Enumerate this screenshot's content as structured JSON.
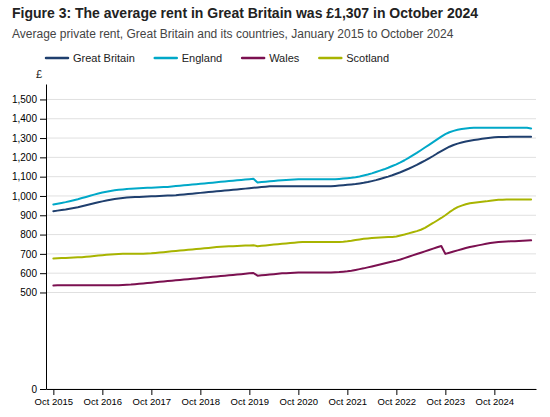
{
  "chart_data": {
    "type": "line",
    "title": "Figure 3: The average rent in Great Britain was £1,307 in October 2024",
    "subtitle": "Average private rent, Great Britain and its countries, January 2015 to October 2024",
    "ylabel": "£",
    "x": [
      2015.0,
      2015.083,
      2015.167,
      2015.25,
      2015.333,
      2015.417,
      2015.5,
      2015.583,
      2015.667,
      2015.75,
      2015.833,
      2015.917,
      2016.0,
      2016.083,
      2016.167,
      2016.25,
      2016.333,
      2016.417,
      2016.5,
      2016.583,
      2016.667,
      2016.75,
      2016.833,
      2016.917,
      2017.0,
      2017.083,
      2017.167,
      2017.25,
      2017.333,
      2017.417,
      2017.5,
      2017.583,
      2017.667,
      2017.75,
      2017.833,
      2017.917,
      2018.0,
      2018.083,
      2018.167,
      2018.25,
      2018.333,
      2018.417,
      2018.5,
      2018.583,
      2018.667,
      2018.75,
      2018.833,
      2018.917,
      2019.0,
      2019.083,
      2019.167,
      2019.25,
      2019.333,
      2019.417,
      2019.5,
      2019.583,
      2019.667,
      2019.75,
      2019.833,
      2019.917,
      2020.0,
      2020.083,
      2020.167,
      2020.25,
      2020.333,
      2020.417,
      2020.5,
      2020.583,
      2020.667,
      2020.75,
      2020.833,
      2020.917,
      2021.0,
      2021.083,
      2021.167,
      2021.25,
      2021.333,
      2021.417,
      2021.5,
      2021.583,
      2021.667,
      2021.75,
      2021.833,
      2021.917,
      2022.0,
      2022.083,
      2022.167,
      2022.25,
      2022.333,
      2022.417,
      2022.5,
      2022.583,
      2022.667,
      2022.75,
      2022.833,
      2022.917,
      2023.0,
      2023.083,
      2023.167,
      2023.25,
      2023.333,
      2023.417,
      2023.5,
      2023.583,
      2023.667,
      2023.75,
      2023.833,
      2023.917,
      2024.0,
      2024.083,
      2024.167,
      2024.25,
      2024.333,
      2024.417,
      2024.5,
      2024.583,
      2024.667,
      2024.75
    ],
    "series": [
      {
        "name": "Great Britain",
        "color": "#1f3f6e",
        "values": [
          921,
          924,
          927,
          930,
          934,
          938,
          942,
          947,
          952,
          957,
          962,
          967,
          972,
          976,
          980,
          984,
          987,
          990,
          992,
          993,
          994,
          995,
          996,
          997,
          998,
          999,
          1000,
          1001,
          1002,
          1003,
          1004,
          1006,
          1008,
          1010,
          1012,
          1014,
          1016,
          1018,
          1020,
          1022,
          1024,
          1026,
          1028,
          1030,
          1032,
          1034,
          1036,
          1038,
          1040,
          1042,
          1044,
          1046,
          1048,
          1050,
          1050,
          1050,
          1050,
          1050,
          1050,
          1050,
          1050,
          1050,
          1050,
          1050,
          1050,
          1050,
          1050,
          1050,
          1050,
          1052,
          1054,
          1056,
          1058,
          1060,
          1062,
          1065,
          1068,
          1072,
          1077,
          1082,
          1088,
          1094,
          1100,
          1107,
          1115,
          1123,
          1132,
          1141,
          1151,
          1161,
          1172,
          1183,
          1195,
          1207,
          1220,
          1232,
          1244,
          1255,
          1264,
          1271,
          1277,
          1282,
          1286,
          1290,
          1293,
          1296,
          1299,
          1302,
          1304,
          1305,
          1306,
          1306,
          1307,
          1307,
          1307,
          1307,
          1307,
          1307
        ]
      },
      {
        "name": "England",
        "color": "#00a8c8",
        "values": [
          956,
          960,
          964,
          968,
          973,
          978,
          983,
          989,
          995,
          1001,
          1007,
          1013,
          1018,
          1022,
          1026,
          1029,
          1032,
          1034,
          1036,
          1038,
          1039,
          1040,
          1041,
          1042,
          1043,
          1044,
          1045,
          1046,
          1047,
          1049,
          1051,
          1053,
          1055,
          1057,
          1059,
          1061,
          1063,
          1065,
          1067,
          1069,
          1071,
          1073,
          1075,
          1077,
          1079,
          1081,
          1083,
          1085,
          1087,
          1089,
          1070,
          1072,
          1074,
          1076,
          1078,
          1080,
          1082,
          1083,
          1084,
          1085,
          1086,
          1086,
          1086,
          1086,
          1086,
          1086,
          1086,
          1086,
          1086,
          1086,
          1088,
          1090,
          1092,
          1094,
          1097,
          1101,
          1106,
          1111,
          1117,
          1124,
          1131,
          1138,
          1146,
          1155,
          1164,
          1174,
          1185,
          1197,
          1210,
          1223,
          1237,
          1251,
          1265,
          1279,
          1293,
          1307,
          1320,
          1330,
          1337,
          1343,
          1347,
          1350,
          1352,
          1353,
          1353,
          1353,
          1353,
          1353,
          1353,
          1353,
          1353,
          1353,
          1353,
          1353,
          1353,
          1353,
          1353,
          1350
        ]
      },
      {
        "name": "Wales",
        "color": "#7b1050",
        "values": [
          536,
          537,
          537,
          538,
          538,
          538,
          538,
          538,
          538,
          538,
          538,
          538,
          538,
          538,
          538,
          538,
          538,
          539,
          540,
          541,
          543,
          545,
          547,
          549,
          551,
          553,
          555,
          557,
          559,
          561,
          563,
          565,
          567,
          569,
          571,
          573,
          575,
          577,
          579,
          581,
          583,
          585,
          587,
          589,
          591,
          593,
          595,
          597,
          599,
          601,
          587,
          589,
          591,
          593,
          595,
          597,
          599,
          600,
          601,
          602,
          603,
          604,
          604,
          604,
          604,
          604,
          604,
          604,
          604,
          605,
          606,
          608,
          610,
          613,
          617,
          621,
          625,
          630,
          635,
          640,
          645,
          650,
          655,
          660,
          665,
          671,
          678,
          685,
          692,
          699,
          706,
          713,
          720,
          727,
          734,
          741,
          700,
          706,
          712,
          718,
          724,
          730,
          736,
          740,
          744,
          748,
          752,
          756,
          759,
          761,
          763,
          764,
          765,
          766,
          767,
          768,
          769,
          770
        ]
      },
      {
        "name": "Scotland",
        "color": "#a8b400",
        "values": [
          676,
          677,
          678,
          679,
          680,
          681,
          682,
          683,
          685,
          687,
          689,
          691,
          693,
          695,
          697,
          698,
          699,
          700,
          700,
          700,
          700,
          700,
          701,
          702,
          703,
          705,
          707,
          709,
          711,
          713,
          715,
          717,
          719,
          721,
          723,
          725,
          727,
          729,
          731,
          733,
          735,
          737,
          738,
          739,
          740,
          741,
          742,
          743,
          744,
          745,
          740,
          742,
          744,
          746,
          748,
          750,
          752,
          754,
          756,
          758,
          760,
          761,
          761,
          761,
          761,
          761,
          761,
          761,
          761,
          761,
          762,
          763,
          765,
          768,
          772,
          775,
          778,
          780,
          782,
          784,
          785,
          786,
          787,
          788,
          790,
          795,
          800,
          806,
          812,
          818,
          825,
          835,
          848,
          860,
          873,
          886,
          900,
          916,
          930,
          942,
          950,
          957,
          962,
          965,
          968,
          970,
          972,
          975,
          978,
          980,
          981,
          982,
          982,
          982,
          982,
          982,
          982,
          982
        ]
      }
    ],
    "xlim": [
      2014.85,
      2024.85
    ],
    "xticks": [
      {
        "value": 2015,
        "label": "Oct 2015"
      },
      {
        "value": 2016,
        "label": "Oct 2016"
      },
      {
        "value": 2017,
        "label": "Oct 2017"
      },
      {
        "value": 2018,
        "label": "Oct 2018"
      },
      {
        "value": 2019,
        "label": "Oct 2019"
      },
      {
        "value": 2020,
        "label": "Oct 2020"
      },
      {
        "value": 2021,
        "label": "Oct 2021"
      },
      {
        "value": 2022,
        "label": "Oct 2022"
      },
      {
        "value": 2023,
        "label": "Oct 2023"
      },
      {
        "value": 2024,
        "label": "Oct 2024"
      }
    ],
    "ylim": [
      0,
      1580
    ],
    "yticks": [
      0,
      500,
      600,
      700,
      800,
      900,
      {
        "value": 1000,
        "label": "1,000"
      },
      {
        "value": 1100,
        "label": "1,100"
      },
      {
        "value": 1200,
        "label": "1,200"
      },
      {
        "value": 1300,
        "label": "1,300"
      },
      {
        "value": 1400,
        "label": "1,400"
      },
      {
        "value": 1500,
        "label": "1,500"
      }
    ],
    "grid": true,
    "legend": "top"
  }
}
